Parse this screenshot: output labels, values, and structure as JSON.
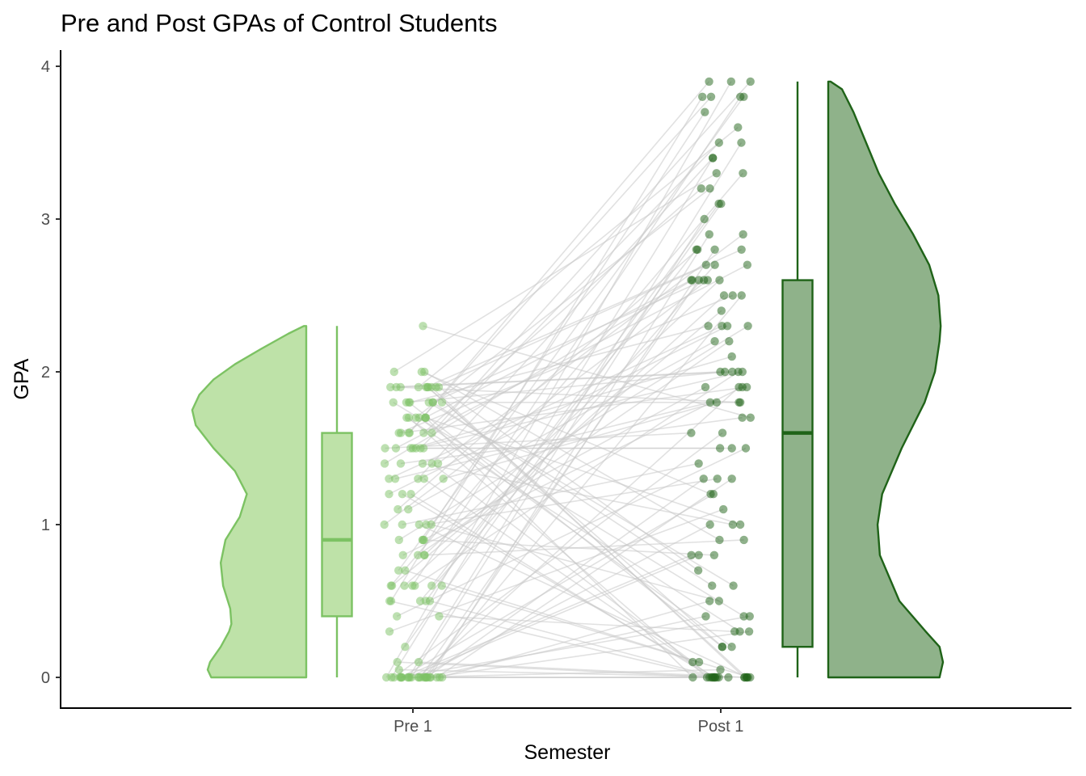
{
  "chart_data": {
    "type": "raincloud",
    "title": "Pre and Post GPAs of Control Students",
    "xlabel": "Semester",
    "ylabel": "GPA",
    "categories": [
      "Pre 1",
      "Post 1"
    ],
    "yticks": [
      "0",
      "1",
      "2",
      "3",
      "4"
    ],
    "ylim": [
      -0.2,
      4.05
    ],
    "grid": false,
    "legend": "none",
    "colors": {
      "pre_line": "#7cc263",
      "pre_fill": "#bee2a8",
      "post_line": "#1f6318",
      "post_fill": "#8fb28a",
      "pair_lines": "#c8c8c8"
    },
    "boxplots": [
      {
        "name": "Pre 1",
        "min": 0,
        "q1": 0.4,
        "median": 0.9,
        "q3": 1.6,
        "max": 2.3
      },
      {
        "name": "Post 1",
        "min": 0,
        "q1": 0.2,
        "median": 1.6,
        "q3": 2.6,
        "max": 3.9
      }
    ],
    "density": [
      {
        "name": "Pre 1",
        "y": [
          0,
          0.05,
          0.1,
          0.2,
          0.3,
          0.35,
          0.45,
          0.6,
          0.75,
          0.9,
          1.05,
          1.2,
          1.35,
          1.5,
          1.65,
          1.75,
          1.85,
          1.95,
          2.05,
          2.15,
          2.25,
          2.3
        ],
        "d": [
          0.8,
          0.83,
          0.81,
          0.72,
          0.65,
          0.63,
          0.64,
          0.7,
          0.72,
          0.68,
          0.56,
          0.5,
          0.6,
          0.78,
          0.93,
          0.96,
          0.9,
          0.78,
          0.6,
          0.38,
          0.15,
          0.02
        ]
      },
      {
        "name": "Post 1",
        "y": [
          0,
          0.1,
          0.2,
          0.3,
          0.5,
          0.8,
          1.0,
          1.2,
          1.5,
          1.8,
          2.0,
          2.2,
          2.3,
          2.5,
          2.7,
          2.9,
          3.1,
          3.3,
          3.5,
          3.7,
          3.85,
          3.9
        ],
        "d": [
          0.97,
          1.0,
          0.97,
          0.85,
          0.62,
          0.45,
          0.43,
          0.47,
          0.64,
          0.84,
          0.93,
          0.97,
          0.98,
          0.96,
          0.88,
          0.74,
          0.58,
          0.44,
          0.33,
          0.22,
          0.12,
          0.02
        ]
      }
    ],
    "pre_values": [
      2.3,
      2.0,
      2.0,
      2.0,
      1.9,
      1.9,
      1.9,
      1.9,
      1.9,
      1.9,
      1.9,
      1.9,
      1.9,
      1.9,
      1.8,
      1.8,
      1.8,
      1.8,
      1.8,
      1.8,
      1.8,
      1.8,
      1.7,
      1.7,
      1.7,
      1.7,
      1.7,
      1.7,
      1.7,
      1.6,
      1.6,
      1.6,
      1.6,
      1.6,
      1.6,
      1.5,
      1.5,
      1.5,
      1.5,
      1.5,
      1.5,
      1.5,
      1.4,
      1.4,
      1.4,
      1.4,
      1.4,
      1.3,
      1.3,
      1.3,
      1.3,
      1.3,
      1.2,
      1.2,
      1.2,
      1.1,
      1.1,
      1.0,
      1.0,
      1.0,
      1.0,
      1.0,
      0.9,
      0.9,
      0.9,
      0.9,
      0.8,
      0.8,
      0.8,
      0.8,
      0.7,
      0.7,
      0.6,
      0.6,
      0.6,
      0.6,
      0.6,
      0.6,
      0.6,
      0.5,
      0.5,
      0.5,
      0.5,
      0.5,
      0.4,
      0.4,
      0.3,
      0.2,
      0.1,
      0.1,
      0.05,
      0,
      0,
      0,
      0,
      0,
      0,
      0,
      0,
      0,
      0,
      0,
      0,
      0,
      0,
      0,
      0,
      0,
      0,
      0,
      0,
      0,
      0,
      0,
      0
    ],
    "post_values": [
      3.9,
      3.9,
      3.9,
      3.8,
      3.8,
      3.8,
      3.8,
      3.7,
      3.6,
      3.5,
      3.5,
      3.4,
      3.4,
      3.3,
      3.3,
      3.2,
      3.2,
      3.1,
      3.1,
      3.0,
      2.9,
      2.9,
      2.8,
      2.8,
      2.8,
      2.8,
      2.7,
      2.7,
      2.7,
      2.6,
      2.6,
      2.6,
      2.6,
      2.6,
      2.6,
      2.5,
      2.5,
      2.5,
      2.4,
      2.3,
      2.3,
      2.3,
      2.3,
      2.2,
      2.2,
      2.1,
      2.0,
      2.0,
      2.0,
      2.0,
      2.0,
      1.9,
      1.9,
      1.9,
      1.9,
      1.8,
      1.8,
      1.8,
      1.8,
      1.7,
      1.7,
      1.6,
      1.6,
      1.5,
      1.5,
      1.5,
      1.4,
      1.3,
      1.3,
      1.3,
      1.2,
      1.2,
      1.1,
      1.0,
      1.0,
      1.0,
      0.9,
      0.9,
      0.8,
      0.8,
      0.8,
      0.7,
      0.6,
      0.6,
      0.5,
      0.5,
      0.4,
      0.4,
      0.4,
      0.3,
      0.3,
      0.3,
      0.2,
      0.2,
      0.2,
      0.1,
      0.1,
      0.05,
      0,
      0,
      0,
      0,
      0,
      0,
      0,
      0,
      0,
      0,
      0,
      0,
      0,
      0,
      0,
      0,
      0
    ]
  }
}
